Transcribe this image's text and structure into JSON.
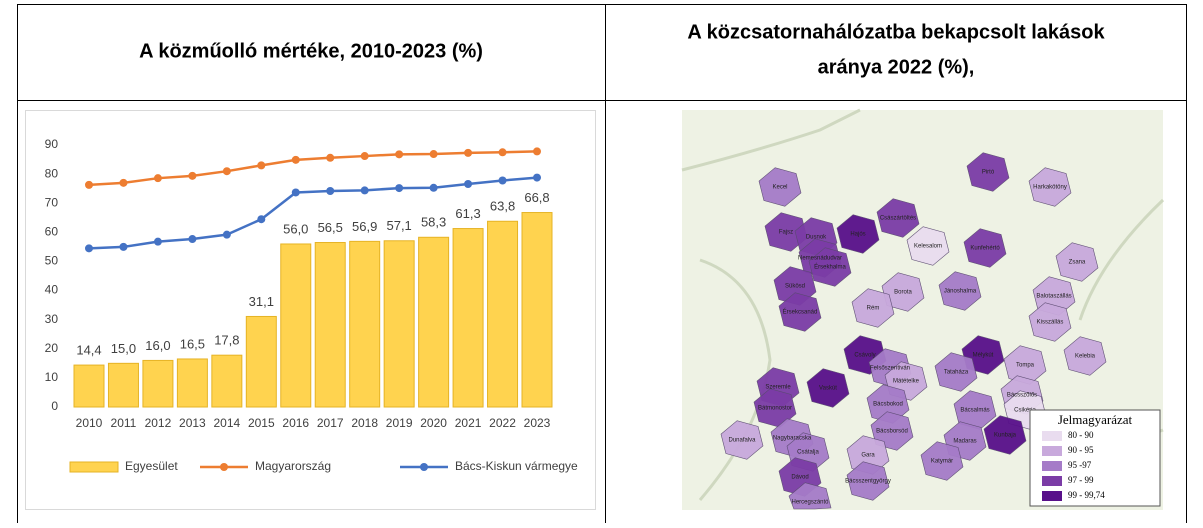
{
  "table": {
    "headers": {
      "left": "A közműolló mértéke, 2010-2023 (%)",
      "right_lines": [
        "A közcsatornahálózatba bekapcsolt lakások",
        "aránya 2022 (%),"
      ]
    }
  },
  "chart_data": {
    "type": "bar-line",
    "categories": [
      "2010",
      "2011",
      "2012",
      "2013",
      "2014",
      "2015",
      "2016",
      "2017",
      "2018",
      "2019",
      "2020",
      "2021",
      "2022",
      "2023"
    ],
    "ylim": [
      0,
      90
    ],
    "yticks": [
      0,
      10,
      20,
      30,
      40,
      50,
      60,
      70,
      80,
      90
    ],
    "grid": false,
    "legend": "bottom",
    "series": [
      {
        "name": "Egyesület",
        "type": "bar",
        "color": "#ffd34f",
        "values": [
          14.4,
          15.0,
          16.0,
          16.5,
          17.8,
          31.1,
          56.0,
          56.5,
          56.9,
          57.1,
          58.3,
          61.3,
          63.8,
          66.8
        ],
        "value_labels": [
          "14,4",
          "15,0",
          "16,0",
          "16,5",
          "17,8",
          "31,1",
          "56,0",
          "56,5",
          "56,9",
          "57,1",
          "58,3",
          "61,3",
          "63,8",
          "66,8"
        ]
      },
      {
        "name": "Magyarország",
        "type": "line",
        "color": "#ed7d31",
        "values": [
          76.3,
          77.0,
          78.6,
          79.4,
          81.0,
          83.0,
          84.9,
          85.6,
          86.2,
          86.8,
          86.9,
          87.3,
          87.5,
          87.8
        ]
      },
      {
        "name": "Bács-Kiskun vármegye",
        "type": "line",
        "color": "#4472c4",
        "values": [
          54.5,
          55.0,
          56.8,
          57.7,
          59.2,
          64.5,
          73.7,
          74.2,
          74.4,
          75.2,
          75.3,
          76.6,
          77.8,
          78.8
        ]
      }
    ]
  },
  "map": {
    "legend_title": "Jelmagyarázat",
    "legend": [
      {
        "label": "80 - 90",
        "color": "#e9dcef"
      },
      {
        "label": "90 - 95",
        "color": "#c8a9dc"
      },
      {
        "label": "95 -97",
        "color": "#a57bc8"
      },
      {
        "label": "97 - 99",
        "color": "#7b3ca6"
      },
      {
        "label": "99 - 99,74",
        "color": "#58108a"
      }
    ],
    "places": [
      "Kecel",
      "Pirtó",
      "Harkakötöny",
      "Császártöltés",
      "Hajós",
      "Fajsz",
      "Dusnok",
      "Kelesalom",
      "Kunfehértó",
      "Zsana",
      "Nemesnádudvar",
      "Érsekhalma",
      "Balotaszállás",
      "Sükösd",
      "Borota",
      "Jánoshalma",
      "Kisszállás",
      "Rém",
      "Érsekcsanád",
      "Csávoly",
      "Felsőszentiván",
      "Mélykút",
      "Tompa",
      "Kelebia",
      "Tataháza",
      "Mátételke",
      "Bácsszőlős",
      "Csikéria",
      "Szeremle",
      "Vaskút",
      "Bácsbokod",
      "Bácsalmás",
      "Bátmonostor",
      "Dunafalva",
      "Nagybaracska",
      "Csátalja",
      "Bácsborsód",
      "Madaras",
      "Kunbaja",
      "Gara",
      "Katymár",
      "Dávod",
      "Bácsszentgyörgy",
      "Hercegszántó"
    ]
  }
}
